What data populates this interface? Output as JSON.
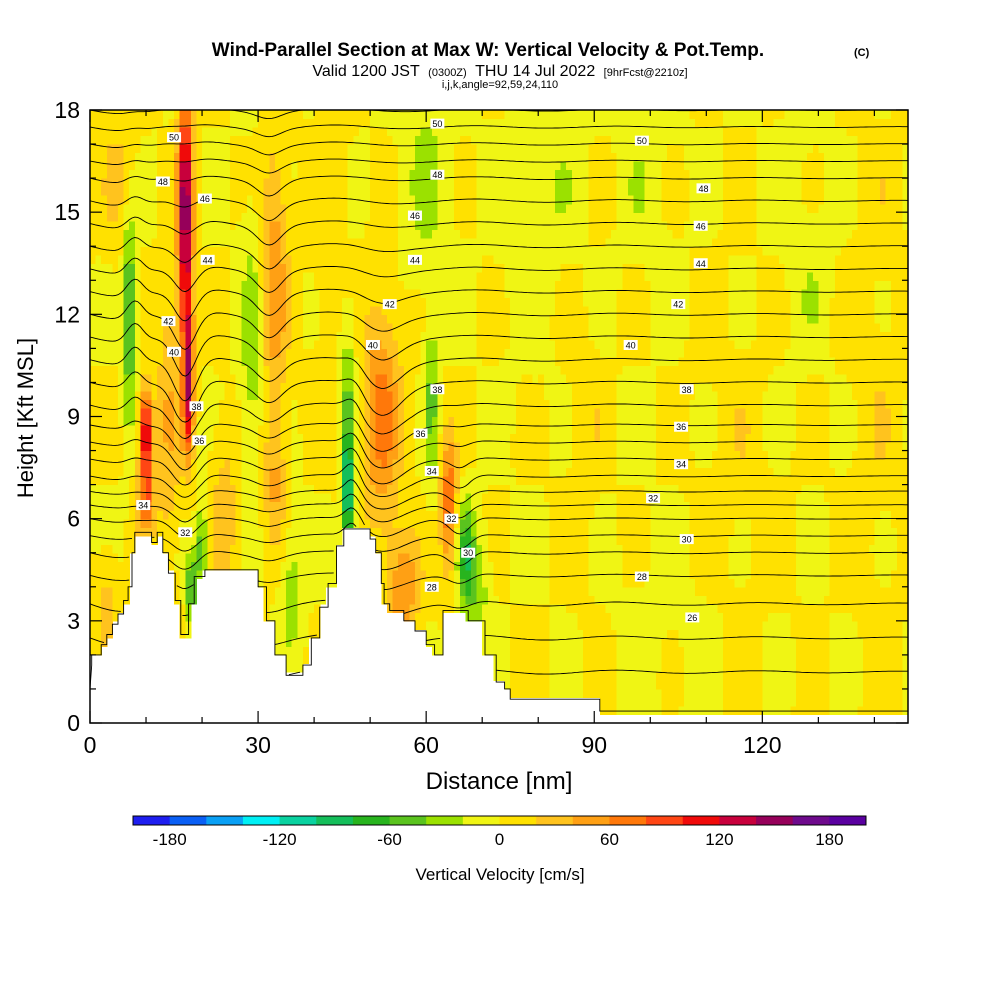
{
  "title": {
    "main": "Wind-Parallel Section at Max W: Vertical Velocity & Pot.Temp.",
    "copyright": "(C)",
    "valid_prefix": "Valid 1200 JST",
    "valid_utc": "(0300Z)",
    "valid_date": "THU 14 Jul 2022",
    "forecast": "[9hrFcst@2210z]",
    "params": "i,j,k,angle=92,59,24,110"
  },
  "chart_data": {
    "type": "heatmap",
    "x": {
      "label": "Distance [nm]",
      "range": [
        0,
        146
      ],
      "ticks": [
        0,
        30,
        60,
        90,
        120
      ],
      "minor_step": 10
    },
    "y": {
      "label": "Height [Kft MSL]",
      "range": [
        0,
        18
      ],
      "ticks": [
        0,
        3,
        6,
        9,
        12,
        15,
        18
      ],
      "minor_step": 1
    },
    "colorbar": {
      "label": "Vertical Velocity [cm/s]",
      "tick_values": [
        -180,
        -120,
        -60,
        0,
        60,
        120,
        180
      ],
      "tick_labels": [
        "-180",
        "-120",
        "-60",
        "0",
        "60",
        "120",
        "180"
      ],
      "levels": [
        -200,
        -180,
        -160,
        -140,
        -120,
        -100,
        -80,
        -60,
        -40,
        -20,
        0,
        20,
        40,
        60,
        80,
        100,
        120,
        140,
        160,
        180,
        200
      ],
      "colors": [
        "#1e1ef0",
        "#0a5ff5",
        "#0aa0f5",
        "#00f0f5",
        "#0ad2a0",
        "#14be5a",
        "#28b41e",
        "#5ac31e",
        "#9be100",
        "#f0f514",
        "#ffe100",
        "#ffc31e",
        "#ffa014",
        "#ff780a",
        "#ff4614",
        "#f00a0a",
        "#c8003c",
        "#96005a",
        "#6e0a8c",
        "#5a00a0"
      ]
    },
    "background_w": 0,
    "updrafts": [
      {
        "x": 17,
        "z": 15,
        "sx": 1.3,
        "sz": 3.5,
        "w": 160
      },
      {
        "x": 17.5,
        "z": 10,
        "sx": 1.0,
        "sz": 2.2,
        "w": 130
      },
      {
        "x": 10,
        "z": 8.5,
        "sx": 1.2,
        "sz": 1.3,
        "w": 135
      },
      {
        "x": 10,
        "z": 6.5,
        "sx": 1.6,
        "sz": 1.0,
        "w": 70
      },
      {
        "x": 14,
        "z": 9,
        "sx": 2.0,
        "sz": 4.0,
        "w": 40
      },
      {
        "x": 33,
        "z": 13,
        "sx": 2.5,
        "sz": 4.0,
        "w": 55
      },
      {
        "x": 33,
        "z": 7,
        "sx": 2.0,
        "sz": 2.0,
        "w": 40
      },
      {
        "x": 52,
        "z": 9,
        "sx": 3.5,
        "sz": 3.2,
        "w": 70
      },
      {
        "x": 56,
        "z": 4,
        "sx": 3.0,
        "sz": 1.5,
        "w": 60
      },
      {
        "x": 64,
        "z": 6.5,
        "sx": 1.5,
        "sz": 2.0,
        "w": 80
      },
      {
        "x": 5,
        "z": 16,
        "sx": 3.0,
        "sz": 2.0,
        "w": 25
      },
      {
        "x": 3,
        "z": 3.5,
        "sx": 2.0,
        "sz": 1.5,
        "w": 30
      },
      {
        "x": 24,
        "z": 6,
        "sx": 2.5,
        "sz": 2.5,
        "w": 35
      },
      {
        "x": 43,
        "z": 14,
        "sx": 3.0,
        "sz": 5.0,
        "w": 15
      },
      {
        "x": 115,
        "z": 6,
        "sx": 8.0,
        "sz": 6.0,
        "w": 12
      },
      {
        "x": 88,
        "z": 9,
        "sx": 4.0,
        "sz": 5.0,
        "w": 12
      },
      {
        "x": 140,
        "z": 10,
        "sx": 6.0,
        "sz": 8.0,
        "w": 12
      }
    ],
    "downdrafts": [
      {
        "x": 7,
        "z": 12,
        "sx": 1.1,
        "sz": 3.0,
        "w": -70
      },
      {
        "x": 20,
        "z": 5,
        "sx": 1.0,
        "sz": 1.5,
        "w": -60
      },
      {
        "x": 18,
        "z": 4,
        "sx": 0.8,
        "sz": 1.0,
        "w": -75
      },
      {
        "x": 29,
        "z": 11,
        "sx": 2.0,
        "sz": 4.0,
        "w": -35
      },
      {
        "x": 36,
        "z": 4,
        "sx": 2.0,
        "sz": 2.0,
        "w": -30
      },
      {
        "x": 46,
        "z": 6.8,
        "sx": 1.1,
        "sz": 1.8,
        "w": -110
      },
      {
        "x": 46,
        "z": 10,
        "sx": 1.5,
        "sz": 2.5,
        "w": -40
      },
      {
        "x": 61,
        "z": 9.5,
        "sx": 1.2,
        "sz": 2.5,
        "w": -45
      },
      {
        "x": 67,
        "z": 5,
        "sx": 1.5,
        "sz": 1.5,
        "w": -70
      },
      {
        "x": 69,
        "z": 4,
        "sx": 2.0,
        "sz": 1.5,
        "w": -40
      },
      {
        "x": 60,
        "z": 16,
        "sx": 4.0,
        "sz": 3.0,
        "w": -25
      },
      {
        "x": 82,
        "z": 15,
        "sx": 8.0,
        "sz": 4.0,
        "w": -12
      },
      {
        "x": 100,
        "z": 16,
        "sx": 5.0,
        "sz": 3.0,
        "w": -12
      },
      {
        "x": 128,
        "z": 14,
        "sx": 6.0,
        "sz": 4.0,
        "w": -12
      },
      {
        "x": 106,
        "z": 3,
        "sx": 12.0,
        "sz": 3.0,
        "w": -10
      }
    ],
    "terrain": [
      [
        0,
        1.0
      ],
      [
        0.3,
        1.7
      ],
      [
        0.3,
        2.0
      ],
      [
        2,
        2.0
      ],
      [
        2,
        2.3
      ],
      [
        3,
        2.3
      ],
      [
        3,
        2.6
      ],
      [
        4,
        2.6
      ],
      [
        4,
        2.9
      ],
      [
        5,
        2.9
      ],
      [
        5,
        3.2
      ],
      [
        6,
        3.2
      ],
      [
        6,
        3.6
      ],
      [
        6.8,
        3.6
      ],
      [
        6.8,
        4.0
      ],
      [
        7.5,
        4.0
      ],
      [
        7.5,
        5.0
      ],
      [
        8,
        5.0
      ],
      [
        8,
        5.6
      ],
      [
        11,
        5.6
      ],
      [
        11,
        5.3
      ],
      [
        12,
        5.3
      ],
      [
        12,
        5.6
      ],
      [
        13,
        5.6
      ],
      [
        13,
        5.0
      ],
      [
        14,
        5.0
      ],
      [
        14,
        4.4
      ],
      [
        15.2,
        4.4
      ],
      [
        15.2,
        3.6
      ],
      [
        16.2,
        3.6
      ],
      [
        16.2,
        2.6
      ],
      [
        17.6,
        2.6
      ],
      [
        17.6,
        3.5
      ],
      [
        18.6,
        3.5
      ],
      [
        18.6,
        4.3
      ],
      [
        20.5,
        4.3
      ],
      [
        20.5,
        4.5
      ],
      [
        30,
        4.5
      ],
      [
        30,
        4.0
      ],
      [
        31.5,
        4.0
      ],
      [
        31.5,
        3.0
      ],
      [
        33,
        3.0
      ],
      [
        33,
        2.0
      ],
      [
        35,
        2.0
      ],
      [
        35,
        1.4
      ],
      [
        38,
        1.4
      ],
      [
        38,
        1.7
      ],
      [
        39.5,
        1.7
      ],
      [
        39.5,
        2.5
      ],
      [
        41,
        2.5
      ],
      [
        41,
        3.4
      ],
      [
        42.5,
        3.4
      ],
      [
        42.5,
        4.1
      ],
      [
        44,
        4.1
      ],
      [
        44,
        5.2
      ],
      [
        45.3,
        5.2
      ],
      [
        45.3,
        5.7
      ],
      [
        50,
        5.7
      ],
      [
        50,
        5.4
      ],
      [
        51,
        5.4
      ],
      [
        51,
        5.0
      ],
      [
        52,
        5.0
      ],
      [
        52,
        4.1
      ],
      [
        52.5,
        4.1
      ],
      [
        52.5,
        3.5
      ],
      [
        53.5,
        3.5
      ],
      [
        53.5,
        3.3
      ],
      [
        56,
        3.3
      ],
      [
        56,
        3.0
      ],
      [
        58,
        3.0
      ],
      [
        58,
        2.7
      ],
      [
        60,
        2.7
      ],
      [
        60,
        2.3
      ],
      [
        61.5,
        2.3
      ],
      [
        61.5,
        2.0
      ],
      [
        63,
        2.0
      ],
      [
        63,
        3.3
      ],
      [
        67.5,
        3.3
      ],
      [
        67.5,
        3.0
      ],
      [
        70.5,
        3.0
      ],
      [
        70.5,
        2.0
      ],
      [
        72.5,
        2.0
      ],
      [
        72.5,
        1.2
      ],
      [
        74,
        1.2
      ],
      [
        74,
        1.0
      ],
      [
        75,
        1.0
      ],
      [
        75,
        0.7
      ],
      [
        91,
        0.7
      ],
      [
        91,
        0.35
      ],
      [
        146,
        0.35
      ]
    ],
    "theta_profile": [
      [
        0,
        22
      ],
      [
        1,
        23.5
      ],
      [
        2,
        24.5
      ],
      [
        3,
        25.5
      ],
      [
        4,
        26.5
      ],
      [
        5,
        28
      ],
      [
        6,
        30
      ],
      [
        7,
        32.5
      ],
      [
        8,
        34.5
      ],
      [
        9,
        36.5
      ],
      [
        10,
        38
      ],
      [
        11,
        39.5
      ],
      [
        12,
        41
      ],
      [
        13,
        42.5
      ],
      [
        14,
        44
      ],
      [
        15,
        45.5
      ],
      [
        16,
        47
      ],
      [
        17,
        49
      ],
      [
        18,
        51
      ],
      [
        19,
        53
      ]
    ],
    "theta_levels": [
      24,
      25,
      26,
      27,
      28,
      29,
      30,
      31,
      32,
      33,
      34,
      35,
      36,
      37,
      38,
      39,
      40,
      41,
      42,
      43,
      44,
      45,
      46,
      47,
      48,
      49,
      50,
      51,
      52
    ],
    "contour_labels": [
      {
        "x": 15,
        "z": 17.2,
        "text": "50"
      },
      {
        "x": 13,
        "z": 15.9,
        "text": "48"
      },
      {
        "x": 20.5,
        "z": 15.4,
        "text": "46"
      },
      {
        "x": 21,
        "z": 13.6,
        "text": "44"
      },
      {
        "x": 14,
        "z": 11.8,
        "text": "42"
      },
      {
        "x": 15,
        "z": 10.9,
        "text": "40"
      },
      {
        "x": 19,
        "z": 9.3,
        "text": "38"
      },
      {
        "x": 19.5,
        "z": 8.3,
        "text": "36"
      },
      {
        "x": 9.5,
        "z": 6.4,
        "text": "34"
      },
      {
        "x": 17,
        "z": 5.6,
        "text": "32"
      },
      {
        "x": 62,
        "z": 17.6,
        "text": "50"
      },
      {
        "x": 62,
        "z": 16.1,
        "text": "48"
      },
      {
        "x": 58,
        "z": 14.9,
        "text": "46"
      },
      {
        "x": 58,
        "z": 13.6,
        "text": "44"
      },
      {
        "x": 53.5,
        "z": 12.3,
        "text": "42"
      },
      {
        "x": 50.5,
        "z": 11.1,
        "text": "40"
      },
      {
        "x": 62,
        "z": 9.8,
        "text": "38"
      },
      {
        "x": 59,
        "z": 8.5,
        "text": "36"
      },
      {
        "x": 61,
        "z": 7.4,
        "text": "34"
      },
      {
        "x": 64.5,
        "z": 6.0,
        "text": "32"
      },
      {
        "x": 67.5,
        "z": 5.0,
        "text": "30"
      },
      {
        "x": 61,
        "z": 4.0,
        "text": "28"
      },
      {
        "x": 98.5,
        "z": 17.1,
        "text": "50"
      },
      {
        "x": 109.5,
        "z": 15.7,
        "text": "48"
      },
      {
        "x": 109,
        "z": 14.6,
        "text": "46"
      },
      {
        "x": 109,
        "z": 13.5,
        "text": "44"
      },
      {
        "x": 105,
        "z": 12.3,
        "text": "42"
      },
      {
        "x": 96.5,
        "z": 11.1,
        "text": "40"
      },
      {
        "x": 106.5,
        "z": 9.8,
        "text": "38"
      },
      {
        "x": 105.5,
        "z": 8.7,
        "text": "36"
      },
      {
        "x": 105.5,
        "z": 7.6,
        "text": "34"
      },
      {
        "x": 100.5,
        "z": 6.6,
        "text": "32"
      },
      {
        "x": 106.5,
        "z": 5.4,
        "text": "30"
      },
      {
        "x": 98.5,
        "z": 4.3,
        "text": "28"
      },
      {
        "x": 107.5,
        "z": 3.1,
        "text": "26"
      }
    ]
  }
}
